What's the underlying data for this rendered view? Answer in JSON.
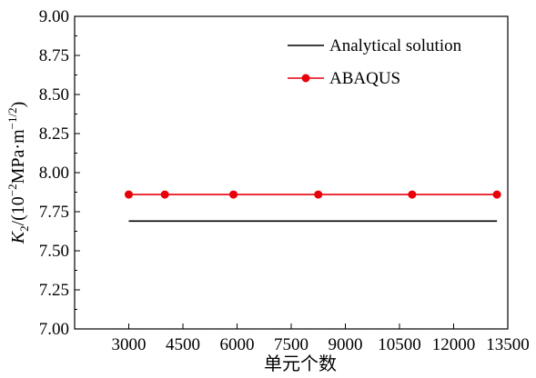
{
  "chart_data": {
    "type": "line",
    "x": [
      3000,
      4000,
      5900,
      8250,
      10850,
      13200
    ],
    "series": [
      {
        "name": "Analytical solution",
        "color": "#000000",
        "markers": false,
        "x": [
          3000,
          13200
        ],
        "values": [
          7.69,
          7.69
        ]
      },
      {
        "name": "ABAQUS",
        "color": "#e8000b",
        "markers": true,
        "x": [
          3000,
          4000,
          5900,
          8250,
          10850,
          13200
        ],
        "values": [
          7.86,
          7.86,
          7.86,
          7.86,
          7.86,
          7.86
        ]
      }
    ],
    "xlabel": "单元个数",
    "ylabel": {
      "k": "K",
      "k_sub": "2",
      "open": "/(10",
      "exp1": "−2",
      "mid": "MPa·m",
      "exp2": "−1/2",
      "close": ")"
    },
    "xlim": [
      1500,
      13500
    ],
    "ylim": [
      7.0,
      9.0
    ],
    "xticks": [
      3000,
      4500,
      6000,
      7500,
      9000,
      10500,
      12000,
      13500
    ],
    "xtick_labels": [
      "3000",
      "4500",
      "6000",
      "7500",
      "9000",
      "10500",
      "12000",
      "13500"
    ],
    "yticks": [
      7.0,
      7.25,
      7.5,
      7.75,
      8.0,
      8.25,
      8.5,
      8.75,
      9.0
    ],
    "ytick_labels": [
      "7.00",
      "7.25",
      "7.50",
      "7.75",
      "8.00",
      "8.25",
      "8.50",
      "8.75",
      "9.00"
    ],
    "grid": false,
    "legend_position": "top-right"
  }
}
